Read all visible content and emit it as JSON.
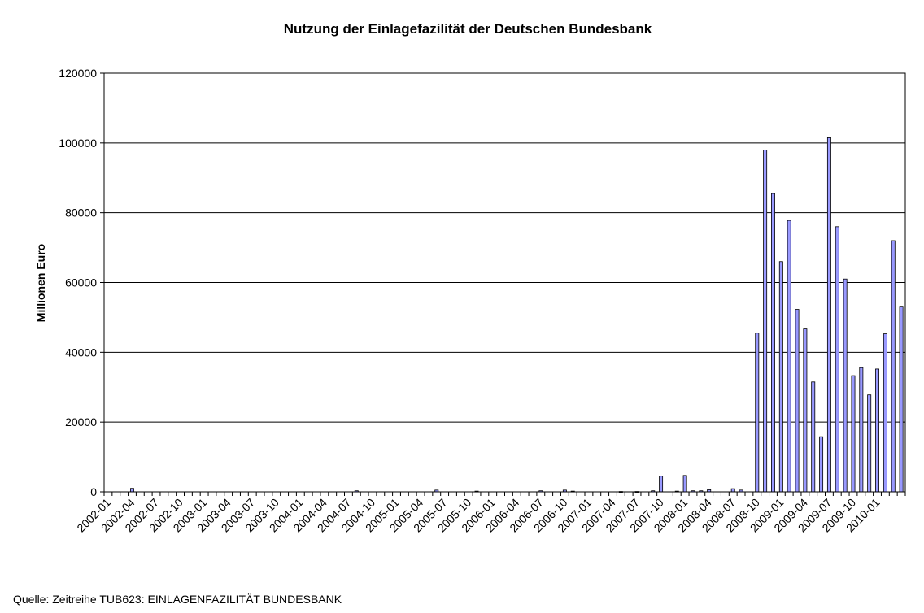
{
  "chart_data": {
    "type": "bar",
    "title": "Nutzung der Einlagefazilität der Deutschen Bundesbank",
    "xlabel": "",
    "ylabel": "Millionen Euro",
    "ylim": [
      0,
      120000
    ],
    "yticks": [
      0,
      20000,
      40000,
      60000,
      80000,
      100000,
      120000
    ],
    "grid": "horizontal",
    "bar_color": "#9999ff",
    "categories": [
      "2002-01",
      "2002-02",
      "2002-03",
      "2002-04",
      "2002-05",
      "2002-06",
      "2002-07",
      "2002-08",
      "2002-09",
      "2002-10",
      "2002-11",
      "2002-12",
      "2003-01",
      "2003-02",
      "2003-03",
      "2003-04",
      "2003-05",
      "2003-06",
      "2003-07",
      "2003-08",
      "2003-09",
      "2003-10",
      "2003-11",
      "2003-12",
      "2004-01",
      "2004-02",
      "2004-03",
      "2004-04",
      "2004-05",
      "2004-06",
      "2004-07",
      "2004-08",
      "2004-09",
      "2004-10",
      "2004-11",
      "2004-12",
      "2005-01",
      "2005-02",
      "2005-03",
      "2005-04",
      "2005-05",
      "2005-06",
      "2005-07",
      "2005-08",
      "2005-09",
      "2005-10",
      "2005-11",
      "2005-12",
      "2006-01",
      "2006-02",
      "2006-03",
      "2006-04",
      "2006-05",
      "2006-06",
      "2006-07",
      "2006-08",
      "2006-09",
      "2006-10",
      "2006-11",
      "2006-12",
      "2007-01",
      "2007-02",
      "2007-03",
      "2007-04",
      "2007-05",
      "2007-06",
      "2007-07",
      "2007-08",
      "2007-09",
      "2007-10",
      "2007-11",
      "2007-12",
      "2008-01",
      "2008-02",
      "2008-03",
      "2008-04",
      "2008-05",
      "2008-06",
      "2008-07",
      "2008-08",
      "2008-09",
      "2008-10",
      "2008-11",
      "2008-12",
      "2009-01",
      "2009-02",
      "2009-03",
      "2009-04",
      "2009-05",
      "2009-06",
      "2009-07",
      "2009-08",
      "2009-09",
      "2009-10",
      "2009-11",
      "2009-12",
      "2010-01",
      "2010-02",
      "2010-03",
      "2010-04"
    ],
    "tick_labels": [
      "2002-01",
      "2002-04",
      "2002-07",
      "2002-10",
      "2003-01",
      "2003-04",
      "2003-07",
      "2003-10",
      "2004-01",
      "2004-04",
      "2004-07",
      "2004-10",
      "2005-01",
      "2005-04",
      "2005-07",
      "2005-10",
      "2006-01",
      "2006-04",
      "2006-07",
      "2006-10",
      "2007-01",
      "2007-04",
      "2007-07",
      "2007-10",
      "2008-01",
      "2008-04",
      "2008-07",
      "2008-10",
      "2009-01",
      "2009-04",
      "2009-07",
      "2009-10",
      "2010-01"
    ],
    "values": [
      0,
      0,
      0,
      1000,
      0,
      0,
      0,
      0,
      0,
      0,
      0,
      0,
      0,
      0,
      0,
      0,
      0,
      0,
      0,
      0,
      0,
      0,
      0,
      0,
      0,
      0,
      0,
      0,
      0,
      0,
      0,
      300,
      0,
      0,
      0,
      0,
      0,
      0,
      0,
      0,
      0,
      500,
      0,
      0,
      0,
      0,
      200,
      0,
      0,
      0,
      0,
      0,
      0,
      0,
      300,
      0,
      0,
      500,
      200,
      0,
      0,
      0,
      0,
      0,
      100,
      0,
      100,
      0,
      300,
      4500,
      0,
      200,
      4700,
      300,
      300,
      600,
      0,
      0,
      900,
      500,
      0,
      45500,
      98000,
      85500,
      66000,
      77800,
      52300,
      46700,
      31500,
      15800,
      101500,
      76000,
      61000,
      33300,
      35600,
      27800,
      35200,
      45300,
      72000,
      53200
    ]
  },
  "source_note": "Quelle: Zeitreihe TUB623: EINLAGENFAZILITÄT BUNDESBANK"
}
